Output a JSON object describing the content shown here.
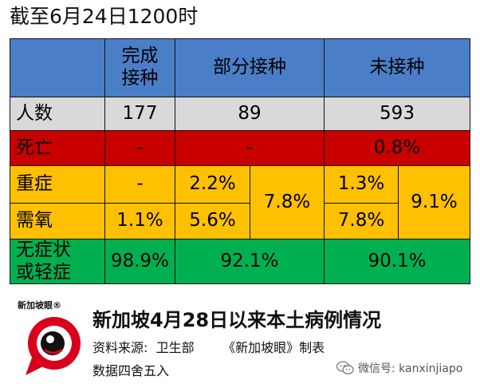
{
  "header": {
    "date_label": "截至6月24日1200时"
  },
  "table": {
    "columns": {
      "corner": "",
      "full": "完成\n接种",
      "partial": "部分接种",
      "none": "未接种"
    },
    "rows": {
      "count": {
        "label": "人数",
        "full": "177",
        "partial": "89",
        "none": "593"
      },
      "death": {
        "label": "死亡",
        "full": "-",
        "partial": "-",
        "none": "0.8%"
      },
      "severe": {
        "label": "重症",
        "full": "-",
        "partial": "2.2%",
        "none": "1.3%"
      },
      "oxygen": {
        "label": "需氧",
        "full": "1.1%",
        "partial": "5.6%",
        "none": "7.8%"
      },
      "combined": {
        "partial": "7.8%",
        "none": "9.1%"
      },
      "mild": {
        "label": "无症状\n或轻症",
        "full": "98.9%",
        "partial": "92.1%",
        "none": "90.1%"
      }
    },
    "colors": {
      "header": "#4A7FC8",
      "count": "#D9D9D9",
      "death": "#C90000",
      "yellow": "#FFC000",
      "mild": "#00B050"
    }
  },
  "footer": {
    "logo_text": "新加坡眼®",
    "logo_icon": "red-speech-bubble-eye-logo",
    "title": "新加坡4月28日以来本土病例情况",
    "source_line": "资料来源:  卫生部       《新加坡眼》制表",
    "rounding_note": "数据四舍五入",
    "wechat_label": "微信号: kanxinjiapo",
    "wechat_icon": "wechat-icon"
  }
}
